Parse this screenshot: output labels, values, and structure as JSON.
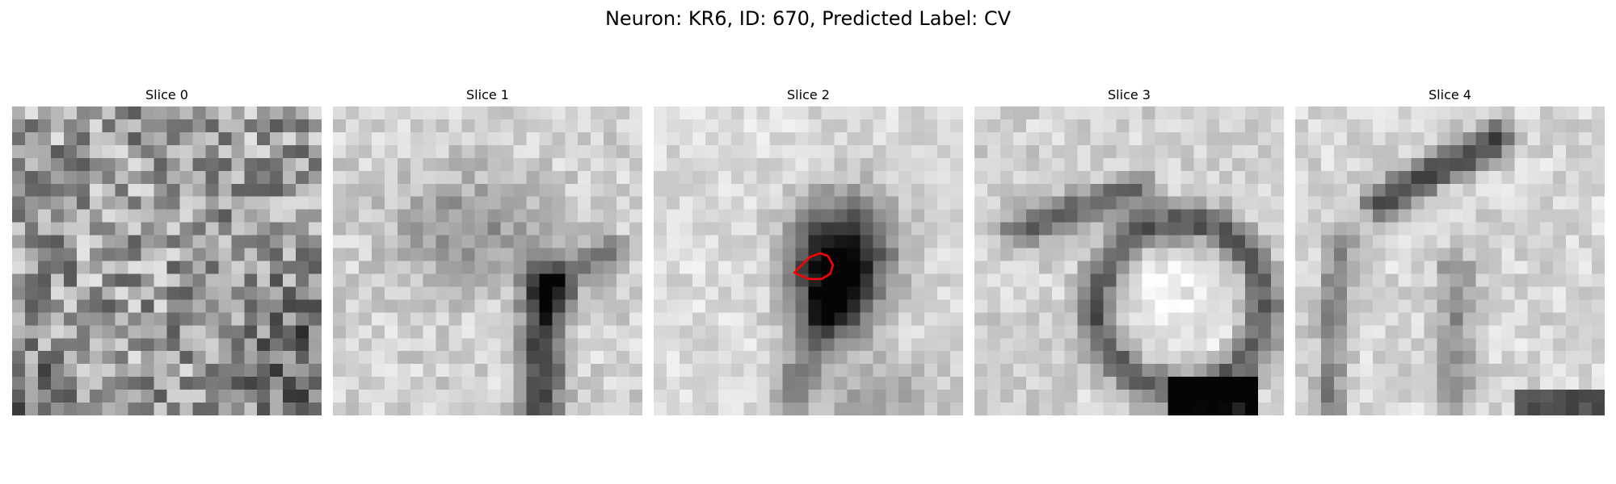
{
  "figure": {
    "title": "Neuron: KR6, ID: 670, Predicted Label: CV"
  },
  "panels": [
    {
      "title": "Slice 0",
      "content": "noisy grayscale texture, darker toward lower-right corner"
    },
    {
      "title": "Slice 1",
      "content": "light field with a dark vertical dendritic structure in lower-middle"
    },
    {
      "title": "Slice 2",
      "content": "light field with dark central blob; red contour outlines predicted object"
    },
    {
      "title": "Slice 3",
      "content": "dark ring-like membrane around a bright round region; dark mass at bottom"
    },
    {
      "title": "Slice 4",
      "content": "dark diagonal band at top, faint vertical structure, dark strip at bottom"
    }
  ],
  "annotation": {
    "contour_color": "#ff0000"
  }
}
